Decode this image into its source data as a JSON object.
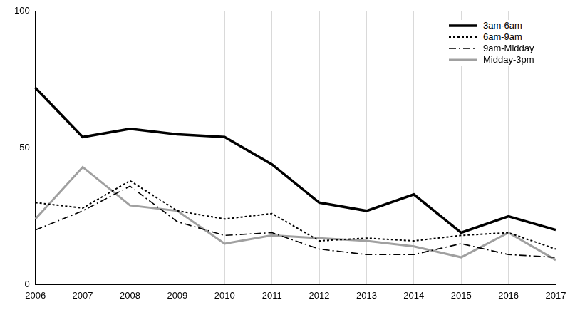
{
  "chart_data": {
    "type": "line",
    "categories": [
      "2006",
      "2007",
      "2008",
      "2009",
      "2010",
      "2011",
      "2012",
      "2013",
      "2014",
      "2015",
      "2016",
      "2017"
    ],
    "series": [
      {
        "name": "3am-6am",
        "color": "#000000",
        "line_style": "solid",
        "values": [
          72,
          54,
          57,
          55,
          54,
          44,
          30,
          27,
          33,
          19,
          25,
          20
        ]
      },
      {
        "name": "6am-9am",
        "color": "#000000",
        "line_style": "dotted",
        "values": [
          30,
          28,
          38,
          27,
          24,
          26,
          16,
          17,
          16,
          18,
          19,
          13
        ]
      },
      {
        "name": "9am-Midday",
        "color": "#000000",
        "line_style": "dashdot",
        "values": [
          20,
          27,
          36,
          23,
          18,
          19,
          13,
          11,
          11,
          15,
          11,
          10
        ]
      },
      {
        "name": "Midday-3pm",
        "color": "#a0a0a0",
        "line_style": "solid",
        "values": [
          24,
          43,
          29,
          27,
          15,
          18,
          17,
          16,
          14,
          10,
          19,
          9
        ]
      }
    ],
    "ylim": [
      0,
      100
    ],
    "yticks": [
      0,
      50,
      100
    ],
    "grid": true,
    "legend": "top-right"
  }
}
